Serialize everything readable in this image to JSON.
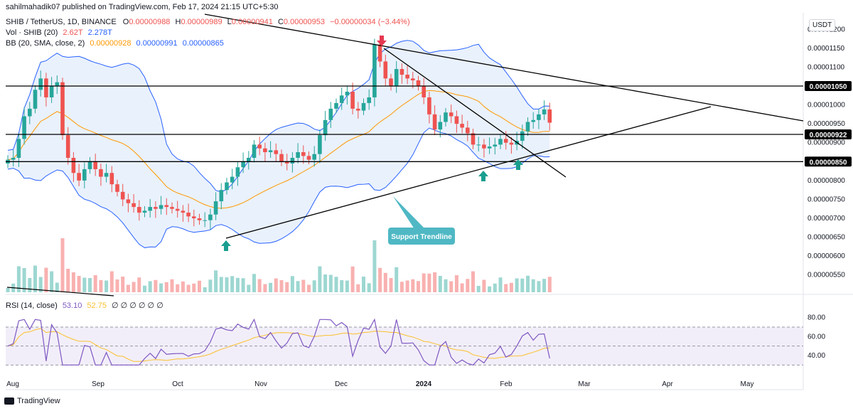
{
  "published": "sahilmahadik07 published on TradingView.com, Feb 17, 2024 21:15 UTC+5:30",
  "currency": "USDT",
  "footer_brand": "TradingView",
  "legend": {
    "symbol": "SHIB / TetherUS, 1D, BINANCE",
    "o_label": "O",
    "o": "0.00000988",
    "h_label": "H",
    "h": "0.00000989",
    "l_label": "L",
    "l": "0.00000941",
    "c_label": "C",
    "c": "0.00000953",
    "change": "−0.00000034 (−3.44%)",
    "vol_label": "Vol · SHIB (20)",
    "vol1": "2.62T",
    "vol2": "2.278T",
    "bb_label": "BB (20, SMA, close, 2)",
    "bb1": "0.00000928",
    "bb2": "0.00000991",
    "bb3": "0.00000865",
    "rsi_label": "RSI (14, close)",
    "rsi1": "53.10",
    "rsi2": "52.75",
    "rsi_zeros": "∅ ∅ ∅ ∅ ∅ ∅"
  },
  "colors": {
    "up": "#26a69a",
    "down": "#ef5350",
    "bb_band": "#2962ff",
    "bb_fill": "#e3edfc",
    "bb_basis": "#ff9800",
    "rsi": "#7e57c2",
    "rsi_ma": "#fbc02d",
    "rsi_bg": "#ede7f6",
    "annotation_fill": "#4fb8c4",
    "arrow_up": "#1a9e8f",
    "arrow_down": "#e53950"
  },
  "chart_data": {
    "type": "candlestick",
    "title": "SHIB / TetherUS, 1D, BINANCE",
    "x_ticks": [
      "Aug",
      "Sep",
      "Oct",
      "Nov",
      "Dec",
      "2024",
      "Feb",
      "Mar",
      "Apr",
      "May"
    ],
    "y_ticks": [
      "0.00001200",
      "0.00001150",
      "0.00001100",
      "0.00001050",
      "0.00001000",
      "0.00000950",
      "0.00000900",
      "0.00000850",
      "0.00000800",
      "0.00000750",
      "0.00000700",
      "0.00000650",
      "0.00000600",
      "0.00000550"
    ],
    "y_range": [
      5.1e-06,
      1.24e-05
    ],
    "horizontal_levels": [
      {
        "value": 1.05e-05,
        "label": "0.00001050"
      },
      {
        "value": 9.22e-06,
        "label": "0.00000922"
      },
      {
        "value": 8.5e-06,
        "label": "0.00000850"
      }
    ],
    "annotation": "Support Trendline",
    "price_series_close": [
      8.55,
      8.6,
      9.1,
      9.7,
      9.9,
      10.4,
      10.7,
      10.2,
      10.5,
      10.6,
      9.2,
      8.6,
      8.2,
      8.0,
      8.3,
      8.5,
      8.3,
      8.1,
      8.2,
      7.9,
      7.7,
      7.5,
      7.4,
      7.3,
      7.15,
      7.2,
      7.3,
      7.25,
      7.35,
      7.3,
      7.25,
      7.2,
      7.15,
      7.05,
      7.0,
      6.95,
      6.95,
      7.1,
      7.45,
      7.75,
      7.95,
      8.1,
      8.35,
      8.5,
      8.6,
      8.95,
      8.85,
      8.75,
      8.8,
      8.7,
      8.5,
      8.45,
      8.6,
      8.75,
      8.65,
      8.55,
      8.7,
      9.2,
      9.6,
      9.9,
      10.05,
      10.25,
      10.35,
      9.9,
      9.85,
      10.05,
      10.2,
      11.6,
      11.15,
      10.7,
      10.5,
      10.95,
      10.8,
      10.7,
      10.65,
      10.5,
      10.2,
      9.75,
      9.35,
      9.55,
      9.8,
      9.7,
      9.5,
      9.4,
      9.25,
      8.95,
      8.95,
      8.85,
      8.9,
      8.95,
      9.1,
      9.0,
      8.95,
      9.05,
      9.3,
      9.55,
      9.6,
      9.75,
      9.88,
      9.53
    ],
    "rsi": {
      "value": 53.1,
      "ma": 52.75,
      "y_ticks": [
        "80.00",
        "60.00",
        "40.00"
      ],
      "range": [
        25,
        85
      ],
      "upper": 70,
      "lower": 30
    },
    "volume": {
      "value": "2.62T",
      "ma": "2.278T"
    },
    "bollinger": {
      "basis": 9.28e-06,
      "upper": 9.91e-06,
      "lower": 8.65e-06
    }
  }
}
